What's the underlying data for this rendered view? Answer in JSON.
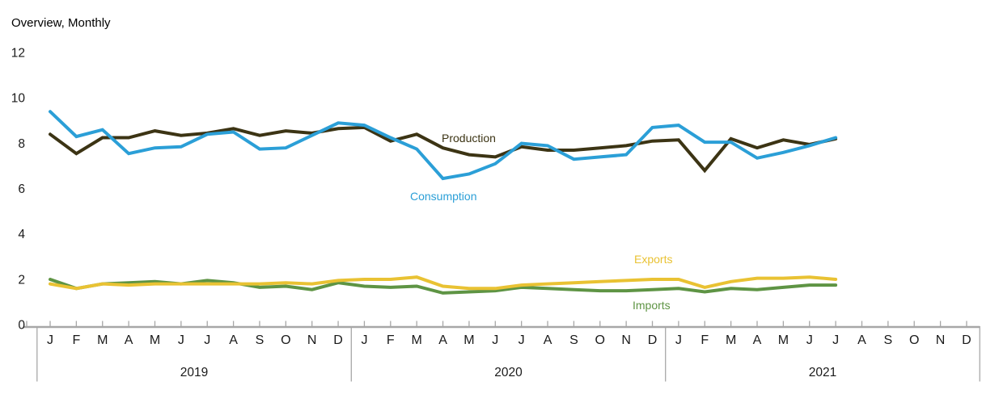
{
  "header": {
    "title": "Overview, Monthly"
  },
  "chart_data": {
    "type": "line",
    "title": "Overview, Monthly",
    "grid": "off",
    "legend_position": "inline-labels-near-lines",
    "y_axis": {
      "ticks": [
        12,
        10,
        8,
        6,
        4,
        2,
        0
      ],
      "range": [
        0,
        12
      ]
    },
    "x_axis": {
      "tick_letters": [
        "J",
        "F",
        "M",
        "A",
        "M",
        "J",
        "J",
        "A",
        "S",
        "O",
        "N",
        "D"
      ],
      "years": [
        "2019",
        "2020",
        "2021"
      ],
      "months_per_year": 12,
      "data_start": "Jan 2019",
      "data_end": "Jul 2021"
    },
    "axis_color": "#a7a7a7",
    "text_color": "#1a1a1a",
    "series": [
      {
        "name": "Production",
        "color": "#3c3414",
        "values": [
          8.5,
          7.65,
          8.35,
          8.35,
          8.65,
          8.45,
          8.55,
          8.75,
          8.45,
          8.65,
          8.55,
          8.75,
          8.8,
          8.2,
          8.5,
          7.9,
          7.6,
          7.5,
          7.95,
          7.8,
          7.8,
          7.9,
          8.0,
          8.2,
          8.25,
          6.9,
          8.3,
          7.9,
          8.25,
          8.05,
          8.3
        ]
      },
      {
        "name": "Consumption",
        "color": "#2b9fd7",
        "values": [
          9.5,
          8.4,
          8.7,
          7.65,
          7.9,
          7.95,
          8.5,
          8.6,
          7.85,
          7.9,
          8.45,
          9.0,
          8.9,
          8.35,
          7.85,
          6.55,
          6.75,
          7.2,
          8.1,
          8.0,
          7.4,
          7.5,
          7.6,
          8.8,
          8.9,
          8.15,
          8.15,
          7.45,
          7.7,
          8.0,
          8.35
        ]
      },
      {
        "name": "Exports",
        "color": "#e9c233",
        "values": [
          1.9,
          1.7,
          1.9,
          1.85,
          1.9,
          1.9,
          1.9,
          1.9,
          1.9,
          1.95,
          1.9,
          2.05,
          2.1,
          2.1,
          2.2,
          1.8,
          1.7,
          1.7,
          1.85,
          1.9,
          1.95,
          2.0,
          2.05,
          2.1,
          2.1,
          1.75,
          2.0,
          2.15,
          2.15,
          2.2,
          2.1
        ]
      },
      {
        "name": "Imports",
        "color": "#5e9444",
        "values": [
          2.1,
          1.7,
          1.9,
          1.95,
          2.0,
          1.9,
          2.05,
          1.95,
          1.75,
          1.8,
          1.65,
          1.95,
          1.8,
          1.75,
          1.8,
          1.5,
          1.55,
          1.6,
          1.75,
          1.7,
          1.65,
          1.6,
          1.6,
          1.65,
          1.7,
          1.55,
          1.7,
          1.65,
          1.75,
          1.85,
          1.85
        ]
      }
    ]
  }
}
